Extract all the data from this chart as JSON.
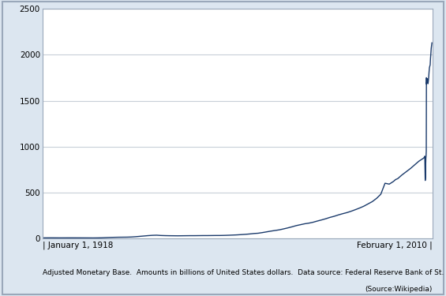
{
  "title": "Adjusted Monetary Base",
  "caption_line1": "Adjusted Monetary Base.  Amounts in billions of United States dollars.  Data source: Federal Reserve Bank of St. Louis.",
  "caption_line2": "(Source:Wikipedia)",
  "x_label_left": "| January 1, 1918",
  "x_label_right": "February 1, 2010 |",
  "ylim": [
    0,
    2500
  ],
  "yticks": [
    0,
    500,
    1000,
    1500,
    2000,
    2500
  ],
  "line_color": "#1a3a6b",
  "plot_bg_color": "#ffffff",
  "outer_bg_color": "#dce6f0",
  "border_color": "#9aa8ba",
  "grid_color": "#c8cfd8",
  "year_start": 1918,
  "year_end": 2010.25,
  "data_points": [
    [
      1918.0,
      4.5
    ],
    [
      1919.0,
      4.8
    ],
    [
      1920.0,
      5.2
    ],
    [
      1921.0,
      4.9
    ],
    [
      1922.0,
      4.6
    ],
    [
      1923.0,
      4.7
    ],
    [
      1924.0,
      4.9
    ],
    [
      1925.0,
      5.0
    ],
    [
      1926.0,
      4.8
    ],
    [
      1927.0,
      4.7
    ],
    [
      1928.0,
      4.5
    ],
    [
      1929.0,
      4.3
    ],
    [
      1930.0,
      4.0
    ],
    [
      1931.0,
      4.5
    ],
    [
      1932.0,
      5.5
    ],
    [
      1933.0,
      7.5
    ],
    [
      1934.0,
      9.2
    ],
    [
      1935.0,
      10.5
    ],
    [
      1936.0,
      11.5
    ],
    [
      1937.0,
      12.0
    ],
    [
      1938.0,
      12.5
    ],
    [
      1939.0,
      14.0
    ],
    [
      1940.0,
      17.0
    ],
    [
      1941.0,
      21.0
    ],
    [
      1942.0,
      25.0
    ],
    [
      1943.0,
      29.0
    ],
    [
      1944.0,
      32.0
    ],
    [
      1945.0,
      33.5
    ],
    [
      1946.0,
      30.5
    ],
    [
      1947.0,
      29.0
    ],
    [
      1948.0,
      28.0
    ],
    [
      1949.0,
      27.5
    ],
    [
      1950.0,
      27.0
    ],
    [
      1951.0,
      27.5
    ],
    [
      1952.0,
      28.0
    ],
    [
      1953.0,
      28.5
    ],
    [
      1954.0,
      28.5
    ],
    [
      1955.0,
      29.0
    ],
    [
      1956.0,
      29.5
    ],
    [
      1957.0,
      29.5
    ],
    [
      1958.0,
      30.0
    ],
    [
      1959.0,
      30.5
    ],
    [
      1960.0,
      30.5
    ],
    [
      1961.0,
      31.5
    ],
    [
      1962.0,
      33.0
    ],
    [
      1963.0,
      35.0
    ],
    [
      1964.0,
      37.0
    ],
    [
      1965.0,
      40.0
    ],
    [
      1966.0,
      43.0
    ],
    [
      1967.0,
      47.0
    ],
    [
      1968.0,
      52.0
    ],
    [
      1969.0,
      55.0
    ],
    [
      1970.0,
      62.0
    ],
    [
      1971.0,
      70.0
    ],
    [
      1972.0,
      78.0
    ],
    [
      1973.0,
      85.0
    ],
    [
      1974.0,
      92.0
    ],
    [
      1975.0,
      102.0
    ],
    [
      1976.0,
      113.0
    ],
    [
      1977.0,
      125.0
    ],
    [
      1978.0,
      138.0
    ],
    [
      1979.0,
      148.0
    ],
    [
      1980.0,
      158.0
    ],
    [
      1981.0,
      165.0
    ],
    [
      1982.0,
      175.0
    ],
    [
      1983.0,
      188.0
    ],
    [
      1984.0,
      200.0
    ],
    [
      1985.0,
      213.0
    ],
    [
      1986.0,
      228.0
    ],
    [
      1987.0,
      240.0
    ],
    [
      1988.0,
      255.0
    ],
    [
      1989.0,
      268.0
    ],
    [
      1990.0,
      280.0
    ],
    [
      1991.0,
      295.0
    ],
    [
      1992.0,
      312.0
    ],
    [
      1993.0,
      330.0
    ],
    [
      1994.0,
      350.0
    ],
    [
      1995.0,
      375.0
    ],
    [
      1996.0,
      400.0
    ],
    [
      1997.0,
      435.0
    ],
    [
      1998.0,
      480.0
    ],
    [
      1999.0,
      600.0
    ],
    [
      2000.0,
      590.0
    ],
    [
      2001.0,
      620.0
    ],
    [
      2001.5,
      640.0
    ],
    [
      2002.0,
      650.0
    ],
    [
      2003.0,
      690.0
    ],
    [
      2004.0,
      725.0
    ],
    [
      2005.0,
      760.0
    ],
    [
      2006.0,
      800.0
    ],
    [
      2007.0,
      840.0
    ],
    [
      2007.5,
      855.0
    ],
    [
      2008.0,
      870.0
    ],
    [
      2008.25,
      880.0
    ],
    [
      2008.4,
      895.0
    ],
    [
      2008.5,
      630.0
    ],
    [
      2008.56,
      660.0
    ],
    [
      2008.62,
      820.0
    ],
    [
      2008.65,
      870.0
    ],
    [
      2008.7,
      900.0
    ],
    [
      2008.75,
      950.0
    ],
    [
      2008.79,
      1750.0
    ],
    [
      2008.82,
      1680.0
    ],
    [
      2008.85,
      1700.0
    ],
    [
      2008.88,
      1710.0
    ],
    [
      2008.92,
      1720.0
    ],
    [
      2008.96,
      1730.0
    ],
    [
      2009.0,
      1740.0
    ],
    [
      2009.04,
      1720.0
    ],
    [
      2009.08,
      1700.0
    ],
    [
      2009.12,
      1690.0
    ],
    [
      2009.17,
      1685.0
    ],
    [
      2009.25,
      1720.0
    ],
    [
      2009.33,
      1760.0
    ],
    [
      2009.42,
      1820.0
    ],
    [
      2009.5,
      1860.0
    ],
    [
      2009.58,
      1875.0
    ],
    [
      2009.67,
      1890.0
    ],
    [
      2009.75,
      1960.0
    ],
    [
      2009.83,
      2010.0
    ],
    [
      2009.92,
      2070.0
    ],
    [
      2010.0,
      2100.0
    ],
    [
      2010.08,
      2130.0
    ]
  ]
}
